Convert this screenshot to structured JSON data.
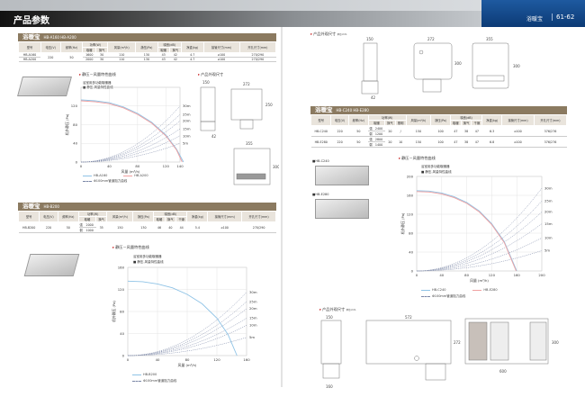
{
  "header": {
    "title": "产品参数",
    "section": "浴暖宝",
    "pages": "61-62"
  },
  "colors": {
    "title_bar": "#8b7a60",
    "header_blue": "#0c3a75",
    "curve_blue": "#8fc3e6",
    "curve_pink": "#f0a0a0",
    "duct_dash": "#7a86a6"
  },
  "dims_label": "产品外观尺寸",
  "dims_unit": "单位:mm",
  "curve_label": "静压－风量特性曲线",
  "t1": {
    "title": "浴暖宝",
    "models": "HB-A160 HB-A200",
    "h": {
      "model": "型号",
      "voltage": "电压(V)",
      "freq": "频率(Hz)",
      "power": "功率(W)",
      "heat": "取暖",
      "vent": "换气",
      "airflow": "风量(m³/h)",
      "pressure": "静压(Pa)",
      "noise": "噪音(dB)",
      "weight": "净重(kg)",
      "pipe": "接管尺寸(mm)",
      "hole": "开孔尺寸(mm)"
    },
    "voltage": "220",
    "freq": "50",
    "rows": [
      {
        "model": "HB-A160",
        "heat": "1600",
        "vent": "30",
        "airflow": "110",
        "pressure": "130",
        "n_heat": "43",
        "n_vent": "42",
        "weight": "4.7",
        "pipe": "⌀100",
        "hole": "270/290"
      },
      {
        "model": "HB-A200",
        "heat": "2000",
        "vent": "30",
        "airflow": "110",
        "pressure": "130",
        "n_heat": "43",
        "n_vent": "42",
        "weight": "4.7",
        "pipe": "⌀100",
        "hole": "270/290"
      }
    ]
  },
  "t2": {
    "title": "浴暖宝",
    "models": "HB-B200",
    "h": {
      "model": "型号",
      "voltage": "电压(V)",
      "freq": "频率(Hz)",
      "power": "功率(W)",
      "heat": "取暖",
      "vent": "换气",
      "airflow": "风量(m³/h)",
      "pressure": "静压(Pa)",
      "noise": "噪音(dB)",
      "dry": "干燥",
      "weight": "净重(kg)",
      "pipe": "接管尺寸(mm)",
      "hole": "开孔尺寸(mm)"
    },
    "row": {
      "model": "HB-B200",
      "voltage": "220",
      "freq": "50",
      "strong": "强",
      "strong_w": "2000",
      "weak": "弱",
      "weak_w": "1000",
      "vent": "35",
      "airflow": "150",
      "pressure": "130",
      "n_heat": "46",
      "n_vent": "40",
      "n_dry": "44",
      "weight": "5.4",
      "pipe": "⌀100",
      "hole": "270/290"
    }
  },
  "t3": {
    "title": "浴暖宝",
    "models": "HB-C240 HB-E280",
    "h": {
      "model": "型号",
      "voltage": "电压(V)",
      "freq": "频率(Hz)",
      "power": "功率(W)",
      "heat": "取暖",
      "vent": "换气",
      "light": "照明",
      "airflow": "风量(m³/h)",
      "pressure": "静压(Pa)",
      "noise": "噪音(dB)",
      "dry": "干燥",
      "weight": "净重(kg)",
      "pipe": "接管尺寸(mm)",
      "hole": "开孔尺寸(mm)"
    },
    "rows": [
      {
        "model": "HB-C240",
        "voltage": "220",
        "freq": "50",
        "strong": "强",
        "strong_w": "2400",
        "weak": "弱",
        "weak_w": "1200",
        "vent": "20",
        "light": "/",
        "airflow": "150",
        "pressure": "100",
        "n_heat": "47",
        "n_vent": "38",
        "n_dry": "47",
        "weight": "6.3",
        "pipe": "⌀100",
        "hole": "376/276"
      },
      {
        "model": "HB-E280",
        "voltage": "220",
        "freq": "50",
        "strong": "强",
        "strong_w": "2800",
        "weak": "弱",
        "weak_w": "1400",
        "vent": "20",
        "light": "10",
        "airflow": "150",
        "pressure": "100",
        "n_heat": "47",
        "n_vent": "38",
        "n_dry": "47",
        "weight": "6.8",
        "pipe": "⌀100",
        "hole": "376/276"
      }
    ]
  },
  "thumbs": {
    "c240": "HB-C240",
    "e280": "HB-E280"
  },
  "dims": {
    "a": {
      "depth": "150",
      "width": "272",
      "height": "250",
      "face": "355",
      "face_h": "300",
      "flange": "42"
    },
    "c": {
      "depth": "150",
      "width": "572",
      "height": "272",
      "face_w": "600",
      "face_h": "300",
      "duct": "160",
      "depth2": "150",
      "flange": "42",
      "width2": "272",
      "face2": "355",
      "face2_h": "300",
      "height2": "300"
    }
  },
  "chart_data": [
    {
      "type": "line",
      "title": "浴室用多功能取暖器",
      "subtitle": "■ 静压-风量特性曲线",
      "xlabel": "风量 (m³/h)",
      "ylabel": "机外静压 (Pa)",
      "xlim": [
        0,
        140
      ],
      "ylim": [
        0,
        160
      ],
      "xticks": [
        0,
        40,
        80,
        120,
        140
      ],
      "yticks": [
        0,
        40,
        80,
        120
      ],
      "grid": true,
      "series": [
        {
          "name": "HB-A160",
          "color": "#8fc3e6",
          "points": [
            [
              0,
              133
            ],
            [
              20,
              131
            ],
            [
              40,
              127
            ],
            [
              60,
              118
            ],
            [
              80,
              104
            ],
            [
              100,
              85
            ],
            [
              120,
              58
            ],
            [
              135,
              28
            ],
            [
              145,
              0
            ]
          ]
        },
        {
          "name": "HB-A200",
          "color": "#f0a0a0",
          "points": [
            [
              0,
              131
            ],
            [
              20,
              129
            ],
            [
              40,
              125
            ],
            [
              60,
              116
            ],
            [
              80,
              102
            ],
            [
              100,
              83
            ],
            [
              120,
              56
            ],
            [
              135,
              26
            ],
            [
              143,
              0
            ]
          ]
        }
      ],
      "duct_legend": "Φ100mm管道阻力曲线",
      "duct_curves": [
        {
          "label": "30m",
          "y_at_xmax": 120
        },
        {
          "label": "25m",
          "y_at_xmax": 102
        },
        {
          "label": "20m",
          "y_at_xmax": 88
        },
        {
          "label": "15m",
          "y_at_xmax": 71
        },
        {
          "label": "10m",
          "y_at_xmax": 56
        },
        {
          "label": "5m",
          "y_at_xmax": 40
        }
      ]
    },
    {
      "type": "line",
      "title": "浴室用多功能取暖器",
      "subtitle": "■ 静压-风量特性曲线",
      "xlabel": "风量 (m³/h)",
      "ylabel": "机外静压 (Pa)",
      "xlim": [
        0,
        160
      ],
      "ylim": [
        0,
        160
      ],
      "xticks": [
        0,
        40,
        80,
        120,
        160
      ],
      "yticks": [
        0,
        40,
        80,
        120,
        160
      ],
      "grid": true,
      "series": [
        {
          "name": "HB-B200",
          "color": "#8fc3e6",
          "points": [
            [
              0,
              135
            ],
            [
              20,
              134
            ],
            [
              40,
              130
            ],
            [
              60,
              123
            ],
            [
              80,
              111
            ],
            [
              100,
              94
            ],
            [
              120,
              68
            ],
            [
              135,
              38
            ],
            [
              147,
              0
            ]
          ]
        }
      ],
      "duct_legend": "Φ100mm管道阻力曲线",
      "duct_curves": [
        {
          "label": "30m",
          "y_at_xmax": 115
        },
        {
          "label": "25m",
          "y_at_xmax": 98
        },
        {
          "label": "20m",
          "y_at_xmax": 85
        },
        {
          "label": "15m",
          "y_at_xmax": 68
        },
        {
          "label": "10m",
          "y_at_xmax": 55
        },
        {
          "label": "5m",
          "y_at_xmax": 33
        }
      ]
    },
    {
      "type": "line",
      "title": "浴室用多功能取暖器",
      "subtitle": "■ 静压-风量特性曲线",
      "xlabel": "风量 (m³/h)",
      "ylabel": "机外静压 (Pa)",
      "xlim": [
        0,
        200
      ],
      "ylim": [
        0,
        200
      ],
      "xticks": [
        0,
        40,
        80,
        120,
        160,
        200
      ],
      "yticks": [
        0,
        40,
        80,
        120,
        160,
        200
      ],
      "grid": true,
      "series": [
        {
          "name": "HB-C240",
          "color": "#8fc3e6",
          "points": [
            [
              0,
              170
            ],
            [
              20,
              169
            ],
            [
              40,
              165
            ],
            [
              60,
              157
            ],
            [
              80,
              145
            ],
            [
              100,
              127
            ],
            [
              120,
              100
            ],
            [
              140,
              62
            ],
            [
              160,
              0
            ]
          ]
        },
        {
          "name": "HB-E280",
          "color": "#f0a0a0",
          "points": [
            [
              0,
              168
            ],
            [
              20,
              167
            ],
            [
              40,
              163
            ],
            [
              60,
              155
            ],
            [
              80,
              143
            ],
            [
              100,
              125
            ],
            [
              120,
              98
            ],
            [
              140,
              60
            ],
            [
              159,
              0
            ]
          ]
        }
      ],
      "duct_legend": "Φ100mm管道阻力曲线",
      "duct_curves": [
        {
          "label": "30m",
          "y_at_xmax": 175
        },
        {
          "label": "25m",
          "y_at_xmax": 148
        },
        {
          "label": "20m",
          "y_at_xmax": 125
        },
        {
          "label": "15m",
          "y_at_xmax": 100
        },
        {
          "label": "10m",
          "y_at_xmax": 70
        },
        {
          "label": "5m",
          "y_at_xmax": 43
        }
      ]
    }
  ]
}
